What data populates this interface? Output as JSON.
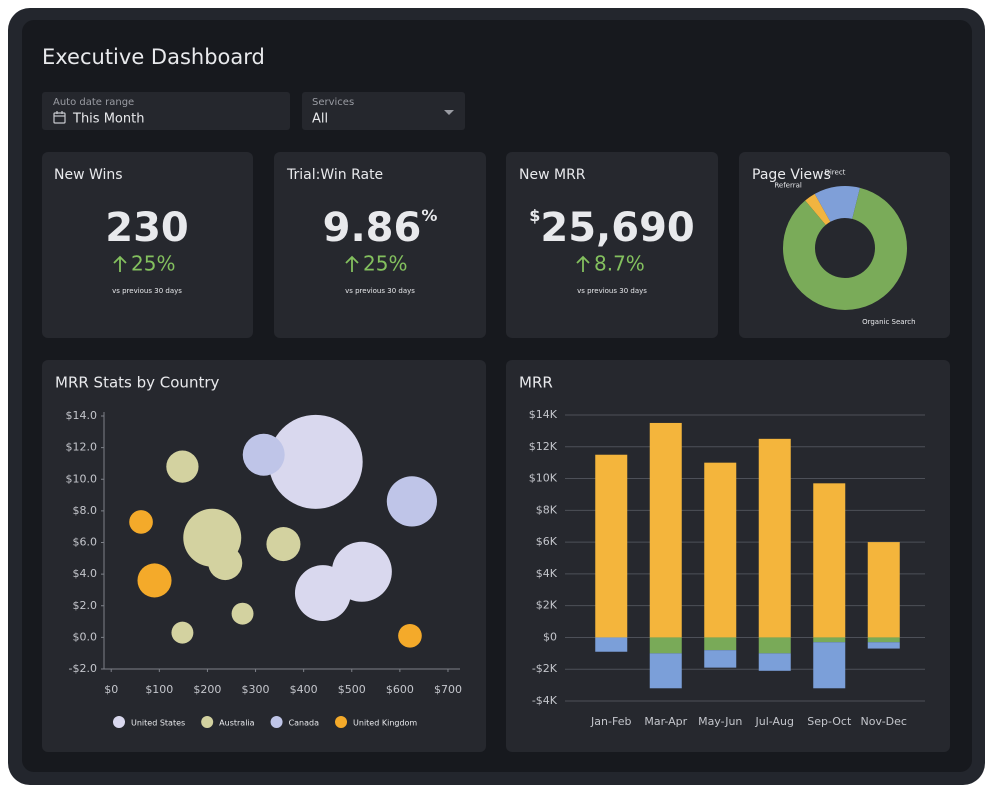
{
  "header": {
    "title": "Executive Dashboard"
  },
  "filters": [
    {
      "label": "Auto date range",
      "value": "This Month"
    },
    {
      "label": "Services",
      "value": "All"
    }
  ],
  "kpis": [
    {
      "title": "New Wins",
      "value": "230",
      "change": "25%",
      "note": "vs previous 30 days"
    },
    {
      "title": "Trial:Win Rate",
      "value": "9.86",
      "unit": "%",
      "change": "25%",
      "note": "vs previous 30 days"
    },
    {
      "title": "New MRR",
      "prefix": "$",
      "value": "25,690",
      "change": "8.7%",
      "note": "vs previous 30 days"
    }
  ],
  "chart_data": [
    {
      "type": "pie",
      "title": "Page Views",
      "donut": true,
      "categories": [
        "Referral",
        "Direct",
        "Organic Search"
      ],
      "values": [
        3,
        12,
        85
      ],
      "colors": [
        "#f2b440",
        "#7f9fd8",
        "#7aab59"
      ]
    },
    {
      "type": "bubble",
      "title": "MRR Stats by Country",
      "series": [
        {
          "name": "United States",
          "color": "#d9d8ee",
          "x": [
            425,
            521,
            440
          ],
          "values": [
            11.1,
            4.15,
            2.8
          ],
          "sizes": [
            221,
            90,
            78
          ]
        },
        {
          "name": "Australia",
          "color": "#d3d2a0",
          "x": [
            148,
            210,
            237,
            358,
            273,
            148
          ],
          "values": [
            10.8,
            6.3,
            4.7,
            5.9,
            1.5,
            0.3
          ],
          "sizes": [
            26,
            84,
            29,
            29,
            12,
            12
          ]
        },
        {
          "name": "Canada",
          "color": "#bfc5e8",
          "x": [
            317,
            625
          ],
          "values": [
            11.55,
            8.6
          ],
          "sizes": [
            44,
            63
          ]
        },
        {
          "name": "United Kingdom",
          "color": "#f4aa2a",
          "x": [
            62,
            90,
            621
          ],
          "values": [
            7.3,
            3.6,
            0.1
          ],
          "sizes": [
            14,
            29,
            14
          ]
        }
      ],
      "xlim": [
        -15,
        725
      ],
      "xticks": [
        {
          "value": 0,
          "label": "$0"
        },
        {
          "value": 100,
          "label": "$100"
        },
        {
          "value": 200,
          "label": "$200"
        },
        {
          "value": 300,
          "label": "$300"
        },
        {
          "value": 400,
          "label": "$400"
        },
        {
          "value": 500,
          "label": "$500"
        },
        {
          "value": 600,
          "label": "$600"
        },
        {
          "value": 700,
          "label": "$700"
        }
      ],
      "ylim": [
        -2,
        14
      ],
      "yticks": [
        {
          "value": -2,
          "label": "-$2.0"
        },
        {
          "value": 0,
          "label": "$0.0"
        },
        {
          "value": 2,
          "label": "$2.0"
        },
        {
          "value": 4,
          "label": "$4.0"
        },
        {
          "value": 6,
          "label": "$6.0"
        },
        {
          "value": 8,
          "label": "$8.0"
        },
        {
          "value": 10,
          "label": "$10.0"
        },
        {
          "value": 12,
          "label": "$12.0"
        },
        {
          "value": 14,
          "label": "$14.0"
        }
      ],
      "legend": "bottom"
    },
    {
      "type": "bar",
      "title": "MRR",
      "stacked": true,
      "categories": [
        "Jan-Feb",
        "Mar-Apr",
        "May-Jun",
        "Jul-Aug",
        "Sep-Oct",
        "Nov-Dec"
      ],
      "series": [
        {
          "color": "#f4b53c",
          "values": [
            11500,
            13500,
            11000,
            12500,
            9700,
            6000
          ]
        },
        {
          "color": "#79aa58",
          "values": [
            0,
            -1000,
            -800,
            -1000,
            -300,
            -300
          ]
        },
        {
          "color": "#7b9fd9",
          "values": [
            -900,
            -2200,
            -1100,
            -1100,
            -2900,
            -400
          ]
        }
      ],
      "ylim": [
        -4000,
        14000
      ],
      "yticks": [
        {
          "value": -4000,
          "label": "-$4K"
        },
        {
          "value": -2000,
          "label": "-$2K"
        },
        {
          "value": 0,
          "label": "$0"
        },
        {
          "value": 2000,
          "label": "$2K"
        },
        {
          "value": 4000,
          "label": "$4K"
        },
        {
          "value": 6000,
          "label": "$6K"
        },
        {
          "value": 8000,
          "label": "$8K"
        },
        {
          "value": 10000,
          "label": "$10K"
        },
        {
          "value": 12000,
          "label": "$12K"
        },
        {
          "value": 14000,
          "label": "$14K"
        }
      ],
      "grid": true
    }
  ]
}
